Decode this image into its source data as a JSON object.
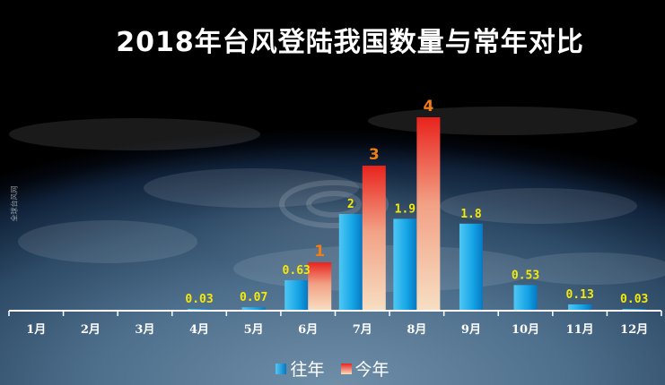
{
  "title": "2018年台风登陆我国数量与常年对比",
  "watermark": "全球台风网",
  "colors": {
    "series_prev_top": "#4fc8f5",
    "series_prev_bottom": "#0877c2",
    "series_curr_top": "#e8231d",
    "series_curr_bottom": "#f7dfc3",
    "label_prev": "#f5e90a",
    "label_curr": "#f07d18"
  },
  "chart_data": {
    "type": "bar",
    "title": "2018年台风登陆我国数量与常年对比",
    "categories": [
      "1月",
      "2月",
      "3月",
      "4月",
      "5月",
      "6月",
      "7月",
      "8月",
      "9月",
      "10月",
      "11月",
      "12月"
    ],
    "series": [
      {
        "name": "往年",
        "values": [
          null,
          null,
          null,
          0.03,
          0.07,
          0.63,
          2,
          1.9,
          1.8,
          0.53,
          0.13,
          0.03
        ],
        "labels": [
          null,
          null,
          null,
          "0.03",
          "0.07",
          "0.63",
          "2",
          "1.9",
          "1.8",
          "0.53",
          "0.13",
          "0.03"
        ]
      },
      {
        "name": "今年",
        "values": [
          null,
          null,
          null,
          null,
          null,
          1,
          3,
          4,
          null,
          null,
          null,
          null
        ],
        "labels": [
          null,
          null,
          null,
          null,
          null,
          "1",
          "3",
          "4",
          null,
          null,
          null,
          null
        ]
      }
    ],
    "ylim": [
      0,
      4.2
    ],
    "grid": false,
    "legend": "bottom"
  }
}
